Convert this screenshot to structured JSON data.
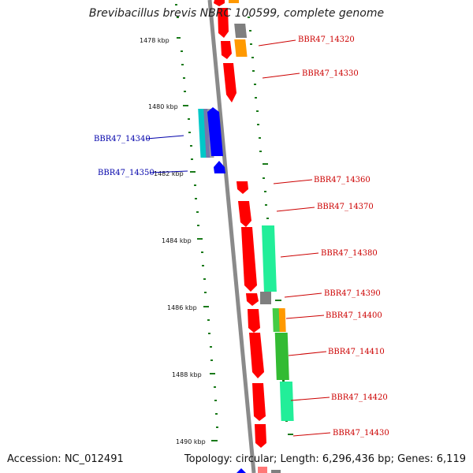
{
  "title": "Brevibacillus brevis NBRC 100599, complete genome",
  "footer": {
    "accession": "Accession: NC_012491",
    "topology": "Topology: circular; Length: 6,296,436 bp; Genes: 6,119"
  },
  "colors": {
    "forward_label": "#cc0000",
    "reverse_label": "#0000aa",
    "ticks": "#1a7a1a",
    "backbone": "#888888"
  },
  "ticks": [
    {
      "label": "1478 kbp"
    },
    {
      "label": "1480 kbp"
    },
    {
      "label": "1482 kbp"
    },
    {
      "label": "1484 kbp"
    },
    {
      "label": "1486 kbp"
    },
    {
      "label": "1488 kbp"
    },
    {
      "label": "1490 kbp"
    }
  ],
  "gene_labels": [
    {
      "text": "BBR47_14320",
      "strand": "forward"
    },
    {
      "text": "BBR47_14330",
      "strand": "forward"
    },
    {
      "text": "BBR47_14340",
      "strand": "reverse"
    },
    {
      "text": "BBR47_14350",
      "strand": "reverse"
    },
    {
      "text": "BBR47_14360",
      "strand": "forward"
    },
    {
      "text": "BBR47_14370",
      "strand": "forward"
    },
    {
      "text": "BBR47_14380",
      "strand": "forward"
    },
    {
      "text": "BBR47_14390",
      "strand": "forward"
    },
    {
      "text": "BBR47_14400",
      "strand": "forward"
    },
    {
      "text": "BBR47_14410",
      "strand": "forward"
    },
    {
      "text": "BBR47_14420",
      "strand": "forward"
    },
    {
      "text": "BBR47_14430",
      "strand": "forward"
    }
  ]
}
